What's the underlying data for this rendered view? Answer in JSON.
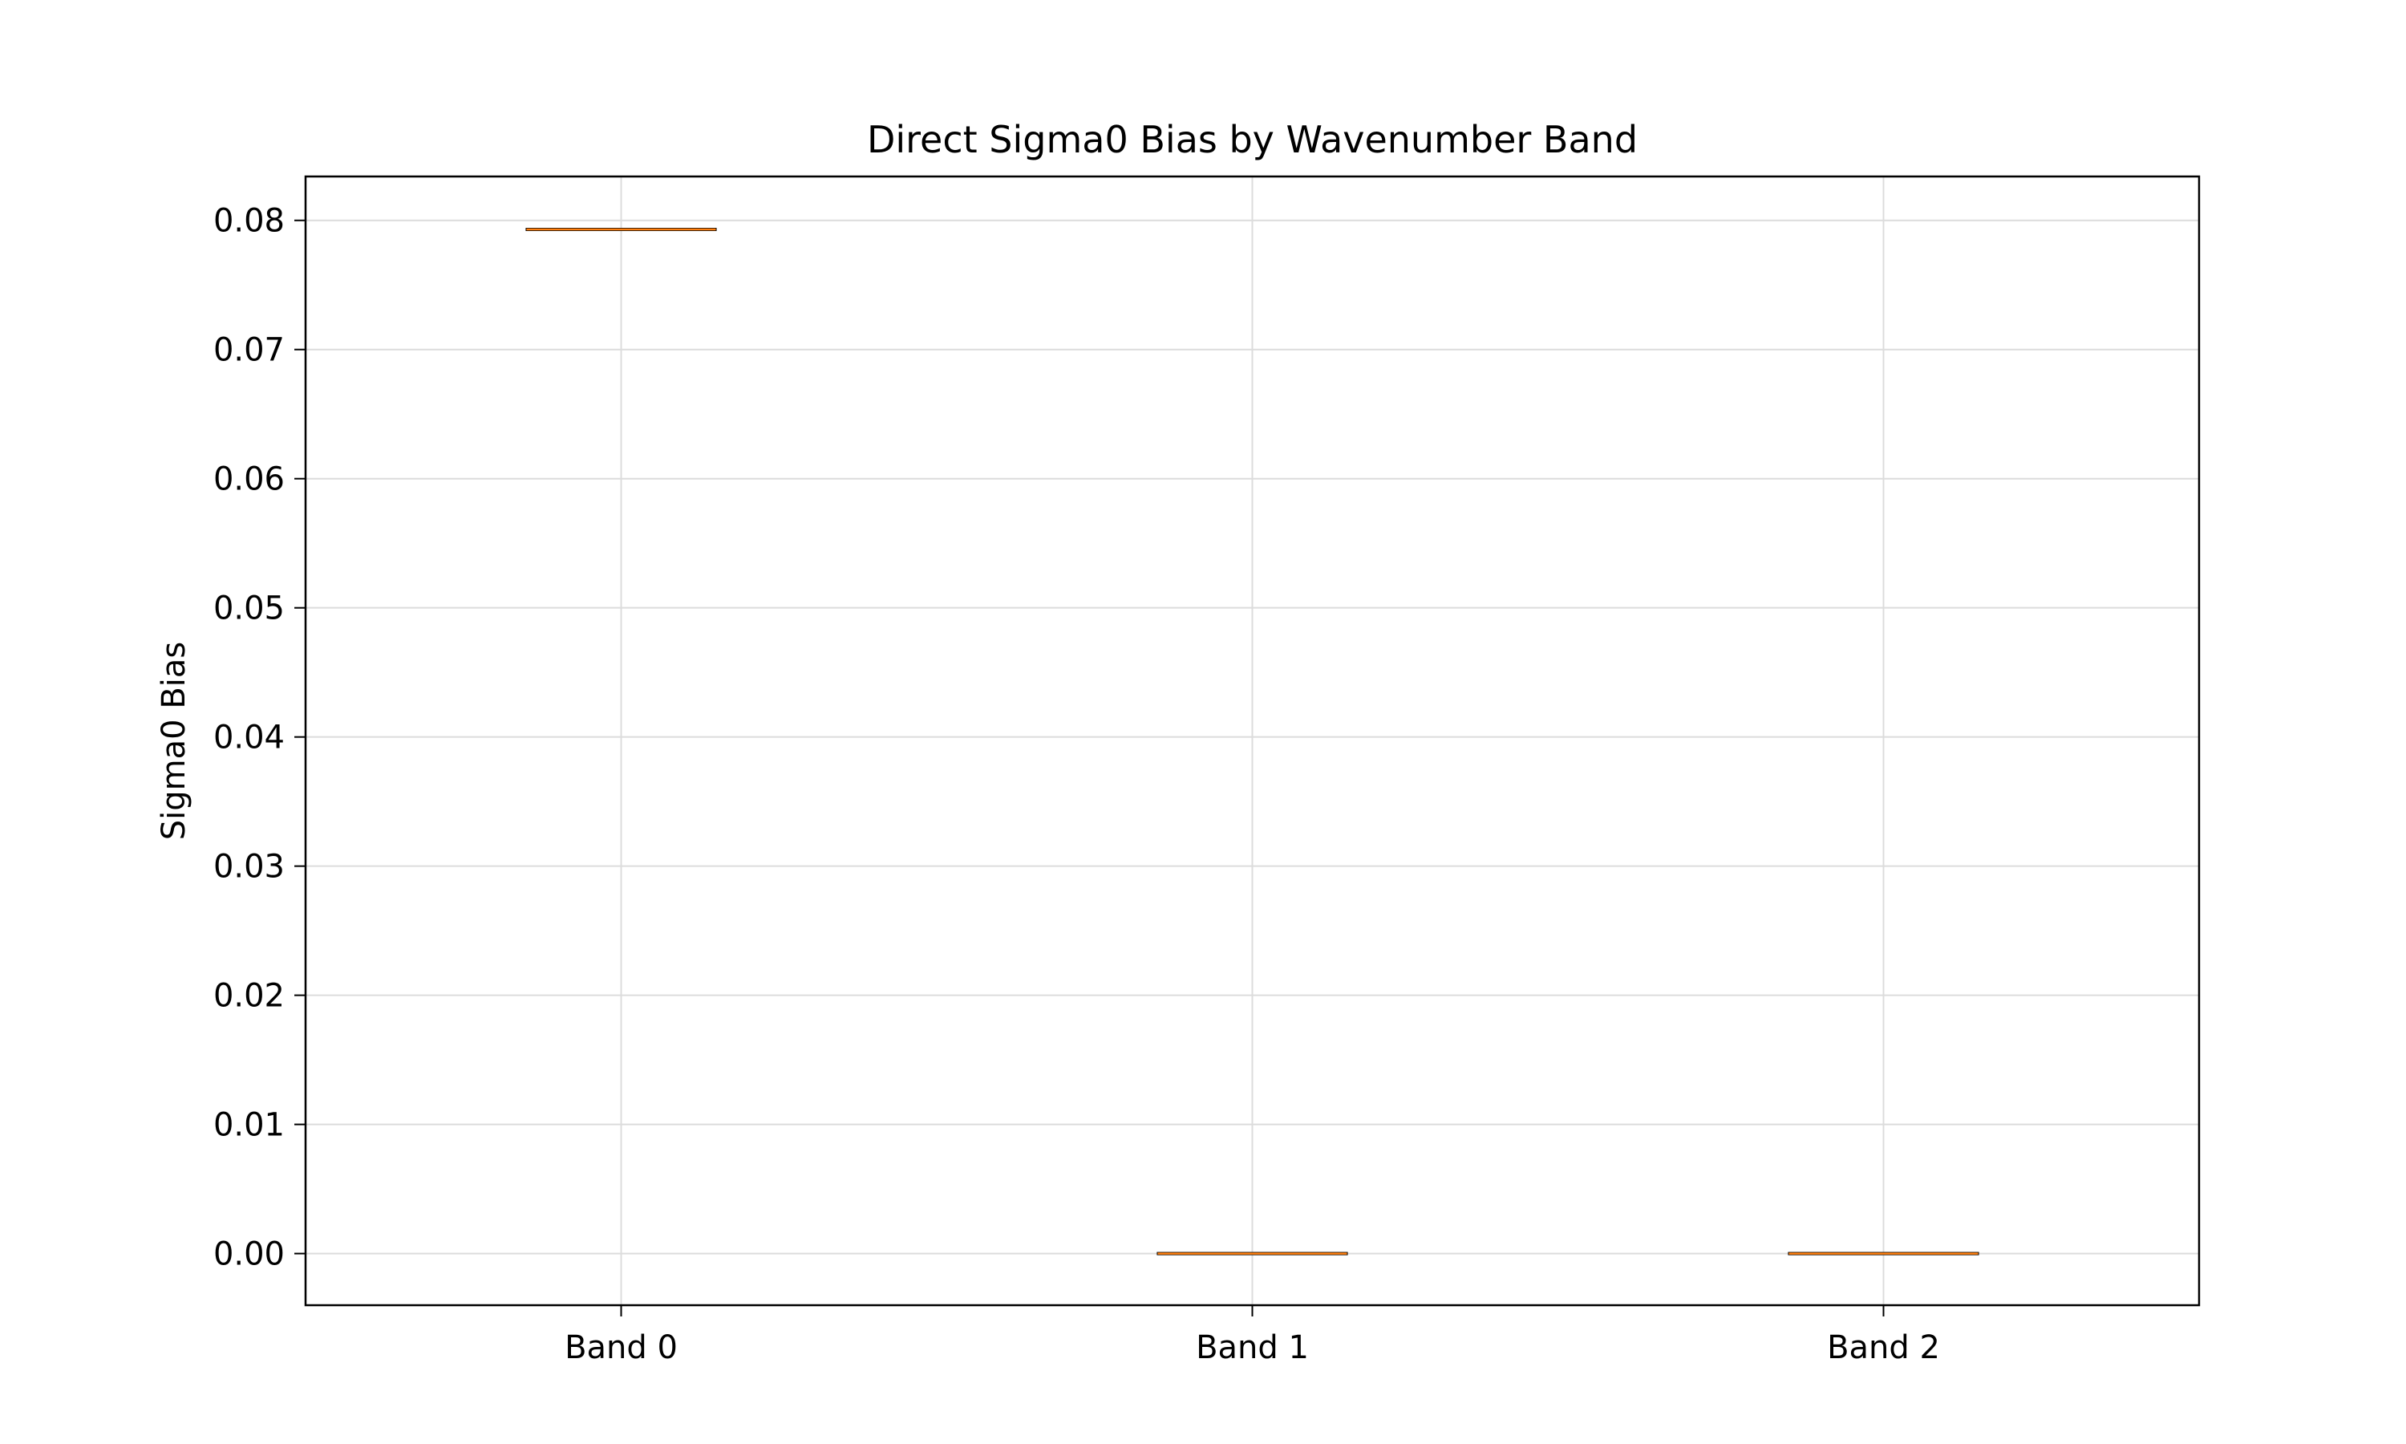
{
  "chart_data": {
    "type": "box",
    "title": "Direct Sigma0 Bias by Wavenumber Band",
    "xlabel": "",
    "ylabel": "Sigma0 Bias",
    "categories": [
      "Band 0",
      "Band 1",
      "Band 2"
    ],
    "series": [
      {
        "values": [
          0.0793,
          0.0,
          0.0
        ]
      }
    ],
    "ylim": [
      -0.004,
      0.0834
    ],
    "yticks": [
      0.0,
      0.01,
      0.02,
      0.03,
      0.04,
      0.05,
      0.06,
      0.07,
      0.08
    ],
    "ytick_labels": [
      "0.00",
      "0.01",
      "0.02",
      "0.03",
      "0.04",
      "0.05",
      "0.06",
      "0.07",
      "0.08"
    ],
    "grid": true,
    "colors": {
      "median": "#ff7f0e",
      "box": "#000000",
      "grid": "#dcdcdc"
    }
  }
}
